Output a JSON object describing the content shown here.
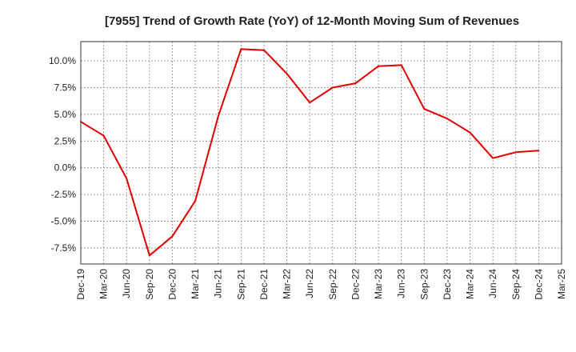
{
  "chart_data": {
    "type": "line",
    "title": "[7955]  Trend of Growth Rate (YoY) of 12-Month Moving Sum of Revenues",
    "xlabel": "",
    "ylabel": "",
    "y_tick_labels": [
      "10.0%",
      "7.5%",
      "5.0%",
      "2.5%",
      "0.0%",
      "-2.5%",
      "-5.0%",
      "-7.5%"
    ],
    "y_tick_values": [
      10.0,
      7.5,
      5.0,
      2.5,
      0.0,
      -2.5,
      -5.0,
      -7.5
    ],
    "ylim": [
      -9.0,
      11.8
    ],
    "x_tick_labels": [
      "Dec-19",
      "Mar-20",
      "Jun-20",
      "Sep-20",
      "Dec-20",
      "Mar-21",
      "Jun-21",
      "Sep-21",
      "Dec-21",
      "Mar-22",
      "Jun-22",
      "Sep-22",
      "Dec-22",
      "Mar-23",
      "Jun-23",
      "Sep-23",
      "Dec-23",
      "Mar-24",
      "Jun-24",
      "Sep-24",
      "Dec-24",
      "Mar-25"
    ],
    "grid": true,
    "series": [
      {
        "color": "#e00000",
        "values": [
          4.3,
          3.0,
          -1.0,
          -8.2,
          -6.4,
          -3.1,
          4.8,
          11.1,
          11.0,
          8.8,
          6.1,
          7.5,
          7.9,
          9.5,
          9.6,
          5.5,
          4.6,
          3.3,
          0.9,
          1.45,
          1.6
        ]
      }
    ]
  }
}
